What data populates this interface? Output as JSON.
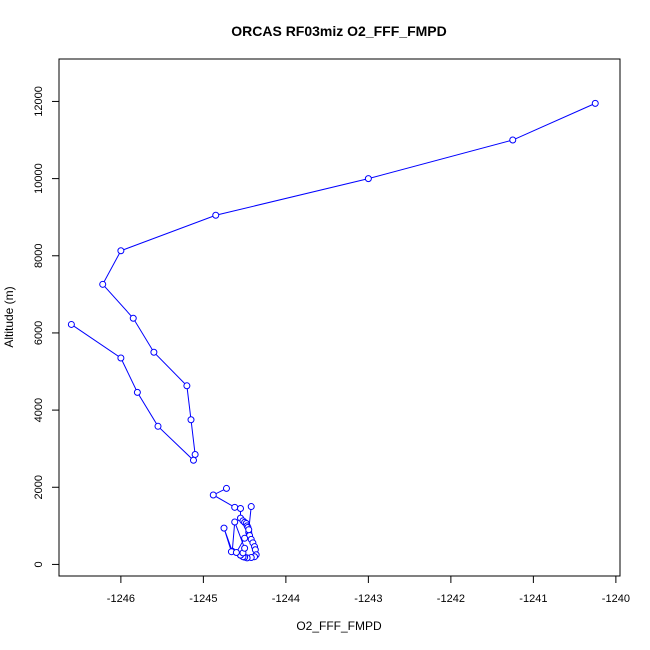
{
  "chart_data": {
    "type": "line",
    "title": "ORCAS RF03miz O2_FFF_FMPD",
    "xlabel": "O2_FFF_FMPD",
    "ylabel": "Altitude (m)",
    "xlim": [
      -1246.75,
      -1239.95
    ],
    "ylim": [
      -300,
      13100
    ],
    "xticks": [
      -1246,
      -1245,
      -1244,
      -1243,
      -1242,
      -1241,
      -1240
    ],
    "xtick_labels": [
      "-1246",
      "-1245",
      "-1244",
      "-1243",
      "-1242",
      "-1241",
      "-1240"
    ],
    "yticks": [
      0,
      2000,
      4000,
      6000,
      8000,
      10000,
      12000
    ],
    "ytick_labels": [
      "0",
      "2000",
      "4000",
      "6000",
      "8000",
      "10000",
      "12000"
    ],
    "grid": false,
    "legend": "none",
    "series": [
      {
        "color": "#0000ff",
        "marker": "open-circle",
        "x": [
          -1240.25,
          -1241.25,
          -1243.0,
          -1244.85,
          -1246.0,
          -1246.22,
          -1245.85,
          -1245.6,
          -1245.2,
          -1245.15,
          -1245.1,
          -1245.12,
          -1245.55,
          -1245.8,
          -1246.0,
          -1246.6
        ],
        "y": [
          11950,
          11000,
          10000,
          9050,
          8130,
          7260,
          6380,
          5500,
          4630,
          3750,
          2850,
          2700,
          3580,
          4460,
          5350,
          6220
        ]
      },
      {
        "color": "#0000ff",
        "marker": "open-circle",
        "x": [
          -1244.72,
          -1244.88,
          -1244.62,
          -1244.55,
          -1244.55,
          -1244.52,
          -1244.5,
          -1244.48,
          -1244.47,
          -1244.46,
          -1244.45,
          -1244.44,
          -1244.42,
          -1244.4,
          -1244.38,
          -1244.37,
          -1244.36,
          -1244.38,
          -1244.42,
          -1244.47,
          -1244.5,
          -1244.52,
          -1244.55
        ],
        "y": [
          1970,
          1800,
          1480,
          1450,
          1200,
          1130,
          1090,
          1060,
          1000,
          960,
          830,
          750,
          650,
          560,
          460,
          380,
          250,
          200,
          180,
          170,
          190,
          200,
          240
        ]
      },
      {
        "color": "#0000ff",
        "marker": "open-circle",
        "x": [
          -1244.55,
          -1244.52,
          -1244.5,
          -1244.62,
          -1244.65,
          -1244.75,
          -1244.66,
          -1244.6,
          -1244.5,
          -1244.45,
          -1244.42
        ],
        "y": [
          240,
          300,
          420,
          1100,
          340,
          940,
          330,
          310,
          680,
          900,
          1500
        ]
      }
    ]
  }
}
